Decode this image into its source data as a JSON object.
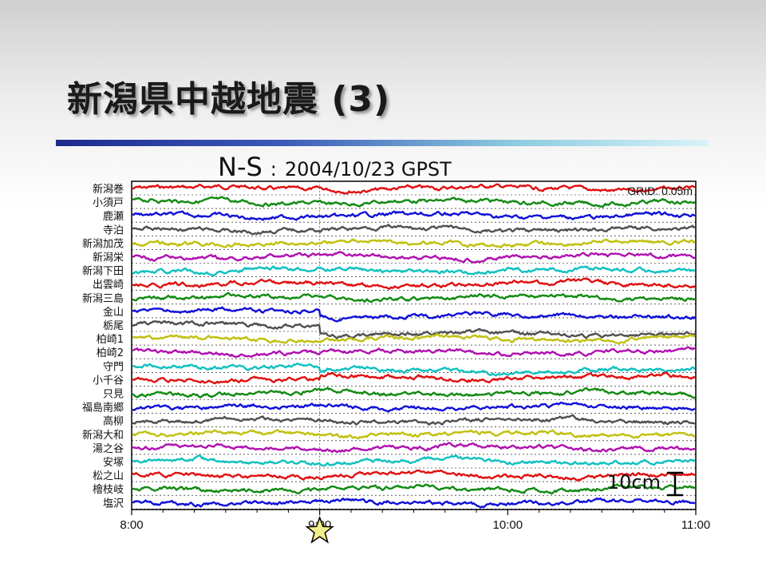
{
  "slide": {
    "title": "新潟県中越地震 (3)",
    "heading_component": "N-S",
    "heading_separator": ":",
    "heading_date": "2004/10/23 GPST"
  },
  "chart_data": {
    "type": "line",
    "component": "N-S",
    "date": "2004/10/23 GPST",
    "grid_note": "GRID: 0.05m",
    "scale_label": "10cm",
    "x_tick_labels": [
      "8:00",
      "9:00",
      "10:00",
      "11:00"
    ],
    "x_range": [
      "8:00",
      "11:00"
    ],
    "event_time": "9:00",
    "event_marker": "star",
    "grid": true,
    "series": [
      {
        "name": "新潟巻",
        "color": "#e01010",
        "offset_m": 0.0
      },
      {
        "name": "小須戸",
        "color": "#128a12",
        "offset_m": 0.0
      },
      {
        "name": "鹿瀬",
        "color": "#1010d8",
        "offset_m": 0.0
      },
      {
        "name": "寺泊",
        "color": "#505050",
        "offset_m": 0.0
      },
      {
        "name": "新潟加茂",
        "color": "#c0c010",
        "offset_m": 0.0
      },
      {
        "name": "新潟栄",
        "color": "#b010b0",
        "offset_m": 0.0
      },
      {
        "name": "新潟下田",
        "color": "#10c0c0",
        "offset_m": 0.0
      },
      {
        "name": "出雲崎",
        "color": "#e01010",
        "offset_m": 0.0
      },
      {
        "name": "新潟三島",
        "color": "#128a12",
        "offset_m": 0.0
      },
      {
        "name": "金山",
        "color": "#1010d8",
        "offset_m": -0.02
      },
      {
        "name": "栃尾",
        "color": "#505050",
        "offset_m": -0.04
      },
      {
        "name": "柏崎1",
        "color": "#c0c010",
        "offset_m": 0.0
      },
      {
        "name": "柏崎2",
        "color": "#b010b0",
        "offset_m": 0.0
      },
      {
        "name": "守門",
        "color": "#10c0c0",
        "offset_m": -0.02
      },
      {
        "name": "小千谷",
        "color": "#e01010",
        "offset_m": 0.01
      },
      {
        "name": "只見",
        "color": "#128a12",
        "offset_m": 0.0
      },
      {
        "name": "福島南郷",
        "color": "#1010d8",
        "offset_m": 0.0
      },
      {
        "name": "高柳",
        "color": "#505050",
        "offset_m": 0.0
      },
      {
        "name": "新潟大和",
        "color": "#c0c010",
        "offset_m": 0.0
      },
      {
        "name": "湯之谷",
        "color": "#b010b0",
        "offset_m": 0.0
      },
      {
        "name": "安塚",
        "color": "#10c0c0",
        "offset_m": 0.0
      },
      {
        "name": "松之山",
        "color": "#e01010",
        "offset_m": 0.0
      },
      {
        "name": "檜枝岐",
        "color": "#128a12",
        "offset_m": 0.0
      },
      {
        "name": "塩沢",
        "color": "#1010d8",
        "offset_m": 0.0
      }
    ]
  }
}
